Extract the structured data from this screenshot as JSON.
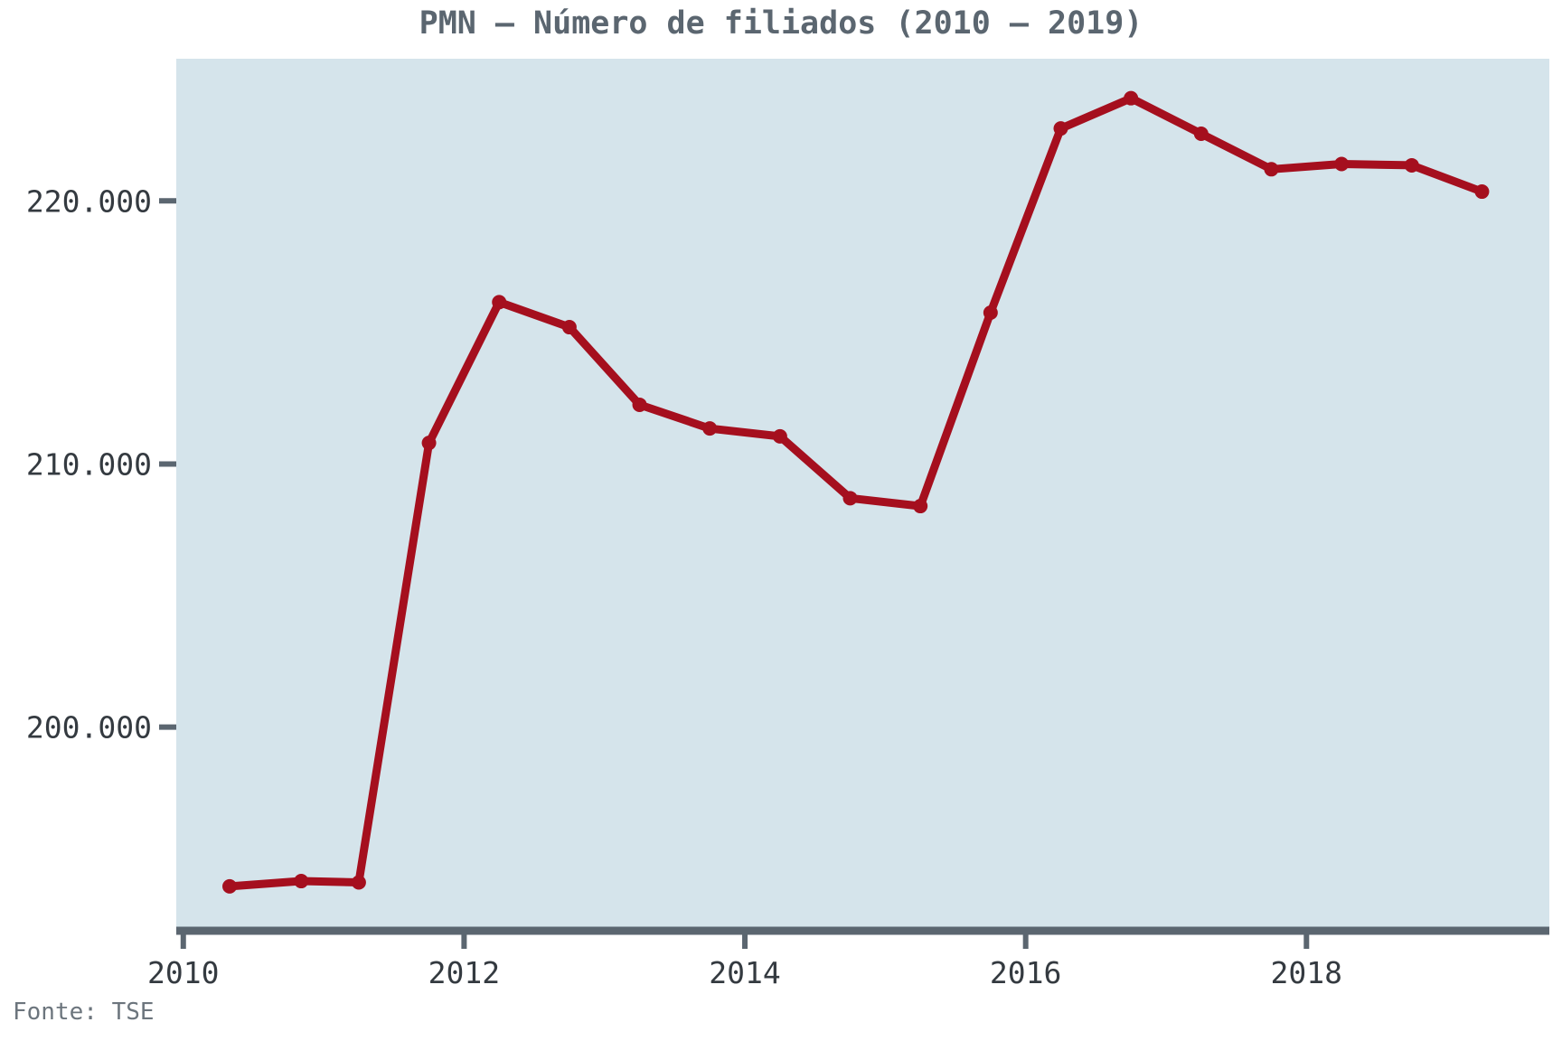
{
  "chart_data": {
    "type": "line",
    "title": "PMN – Número de filiados (2010 – 2019)",
    "source": "Fonte: TSE",
    "xlabel": "",
    "ylabel": "",
    "x_ticks": [
      2010,
      2012,
      2014,
      2016,
      2018
    ],
    "x_tick_labels": [
      "2010",
      "2012",
      "2014",
      "2016",
      "2018"
    ],
    "y_ticks": [
      200000,
      210000,
      220000
    ],
    "y_tick_labels": [
      "200.000",
      "210.000",
      "220.000"
    ],
    "xlim": [
      2009.95,
      2019.73
    ],
    "ylim": [
      192400,
      225400
    ],
    "grid": false,
    "colors": {
      "plot_background": "#d5e4eb",
      "line": "#a50f1e",
      "axis": "#5b6670",
      "text": "#343a40"
    },
    "series": [
      {
        "x": [
          2010.33,
          2010.84,
          2011.25,
          2011.75,
          2012.25,
          2012.75,
          2013.25,
          2013.75,
          2014.25,
          2014.75,
          2015.25,
          2015.75,
          2016.25,
          2016.75,
          2017.25,
          2017.75,
          2018.25,
          2018.75,
          2019.25
        ],
        "y": [
          193950,
          194150,
          194100,
          210800,
          216150,
          215200,
          212250,
          211350,
          211050,
          208700,
          208400,
          215750,
          222750,
          223900,
          222550,
          221200,
          221400,
          221350,
          220350
        ]
      }
    ]
  }
}
